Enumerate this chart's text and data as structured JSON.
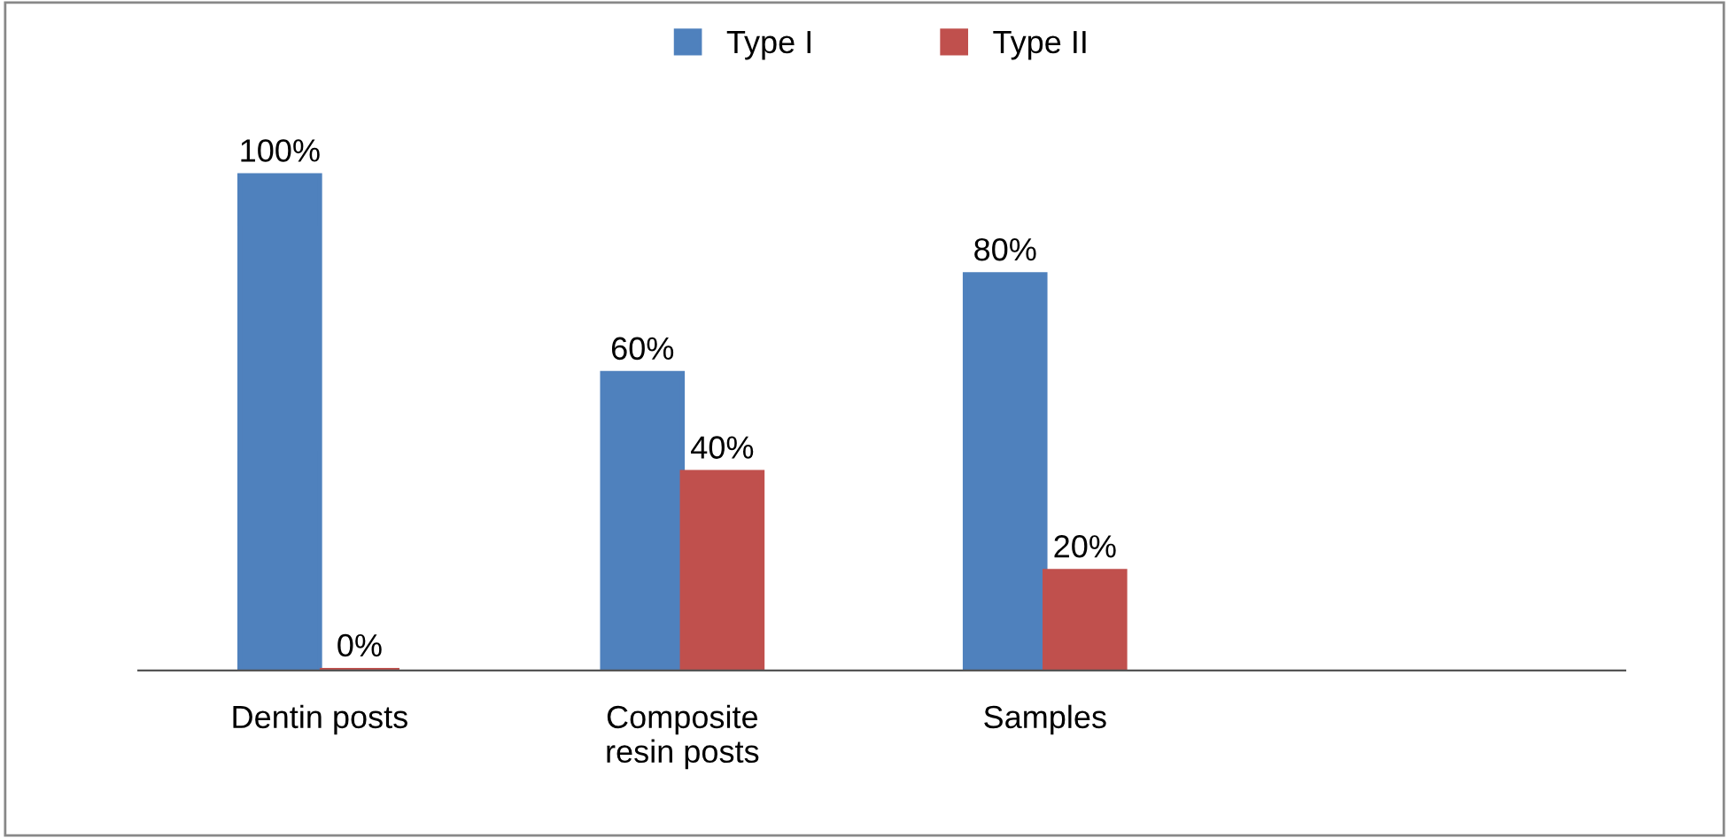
{
  "chart_data": {
    "type": "bar",
    "categories": [
      "Dentin posts",
      "Composite\nresin posts",
      "Samples"
    ],
    "series": [
      {
        "name": "Type I",
        "color": "#4f81bd",
        "values": [
          100,
          60,
          80
        ],
        "value_labels": [
          "100%",
          "60%",
          "80%"
        ]
      },
      {
        "name": "Type II",
        "color": "#c0504d",
        "values": [
          0,
          40,
          20
        ],
        "value_labels": [
          "0%",
          "40%",
          "20%"
        ]
      }
    ],
    "legend": "top",
    "grid": false
  }
}
